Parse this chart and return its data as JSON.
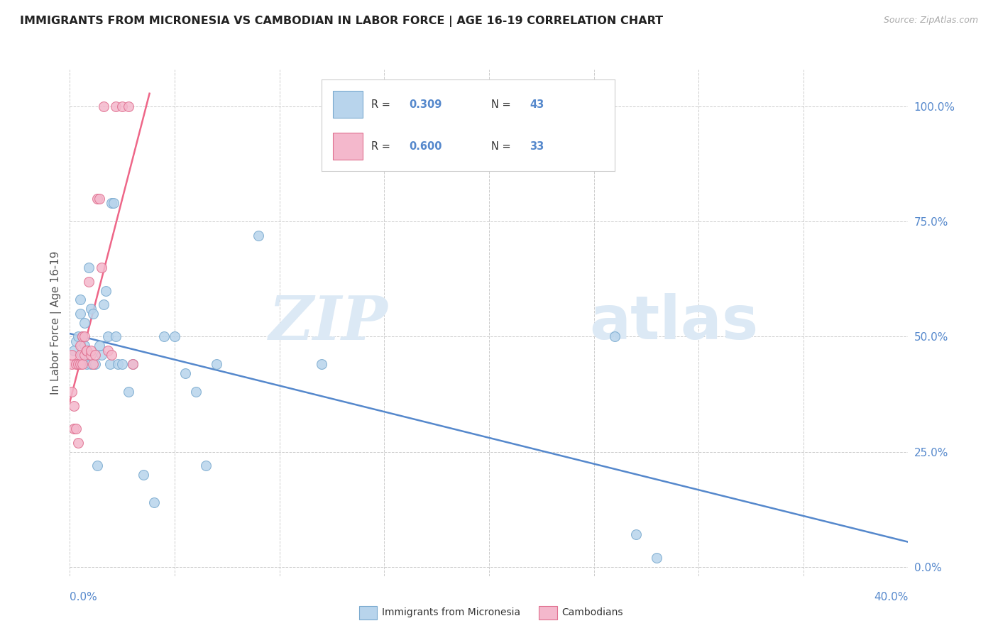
{
  "title": "IMMIGRANTS FROM MICRONESIA VS CAMBODIAN IN LABOR FORCE | AGE 16-19 CORRELATION CHART",
  "source": "Source: ZipAtlas.com",
  "ylabel": "In Labor Force | Age 16-19",
  "ylabel_right_ticks": [
    "0.0%",
    "25.0%",
    "50.0%",
    "75.0%",
    "100.0%"
  ],
  "ylabel_right_vals": [
    0.0,
    0.25,
    0.5,
    0.75,
    1.0
  ],
  "xlim": [
    0.0,
    0.4
  ],
  "ylim": [
    -0.02,
    1.08
  ],
  "micronesia_color": "#b8d4ec",
  "cambodian_color": "#f4b8cc",
  "micronesia_edge": "#7aaacf",
  "cambodian_edge": "#e07090",
  "trend_micronesia": "#5588cc",
  "trend_cambodian": "#ee6688",
  "R_micronesia": "0.309",
  "N_micronesia": "43",
  "R_cambodian": "0.600",
  "N_cambodian": "33",
  "legend_label_micronesia": "Immigrants from Micronesia",
  "legend_label_cambodian": "Cambodians",
  "micronesia_x": [
    0.002,
    0.003,
    0.004,
    0.005,
    0.005,
    0.006,
    0.006,
    0.007,
    0.007,
    0.008,
    0.008,
    0.009,
    0.01,
    0.01,
    0.011,
    0.012,
    0.013,
    0.014,
    0.015,
    0.016,
    0.017,
    0.018,
    0.019,
    0.02,
    0.021,
    0.022,
    0.023,
    0.025,
    0.028,
    0.03,
    0.035,
    0.04,
    0.045,
    0.05,
    0.055,
    0.06,
    0.065,
    0.07,
    0.09,
    0.12,
    0.26,
    0.27,
    0.28
  ],
  "micronesia_y": [
    0.47,
    0.49,
    0.5,
    0.55,
    0.58,
    0.46,
    0.5,
    0.48,
    0.53,
    0.44,
    0.47,
    0.65,
    0.44,
    0.56,
    0.55,
    0.44,
    0.22,
    0.48,
    0.46,
    0.57,
    0.6,
    0.5,
    0.44,
    0.79,
    0.79,
    0.5,
    0.44,
    0.44,
    0.38,
    0.44,
    0.2,
    0.14,
    0.5,
    0.5,
    0.42,
    0.38,
    0.22,
    0.44,
    0.72,
    0.44,
    0.5,
    0.07,
    0.02
  ],
  "cambodian_x": [
    0.001,
    0.001,
    0.001,
    0.002,
    0.002,
    0.003,
    0.003,
    0.004,
    0.004,
    0.005,
    0.005,
    0.005,
    0.006,
    0.006,
    0.007,
    0.007,
    0.008,
    0.008,
    0.009,
    0.01,
    0.01,
    0.011,
    0.012,
    0.013,
    0.014,
    0.015,
    0.016,
    0.018,
    0.02,
    0.022,
    0.025,
    0.028,
    0.03
  ],
  "cambodian_y": [
    0.44,
    0.46,
    0.38,
    0.3,
    0.35,
    0.44,
    0.3,
    0.44,
    0.27,
    0.44,
    0.46,
    0.48,
    0.44,
    0.5,
    0.5,
    0.46,
    0.47,
    0.47,
    0.62,
    0.46,
    0.47,
    0.44,
    0.46,
    0.8,
    0.8,
    0.65,
    1.0,
    0.47,
    0.46,
    1.0,
    1.0,
    1.0,
    0.44
  ],
  "watermark_zip": "ZIP",
  "watermark_atlas": "atlas",
  "grid_color": "#cccccc",
  "background_color": "#ffffff"
}
